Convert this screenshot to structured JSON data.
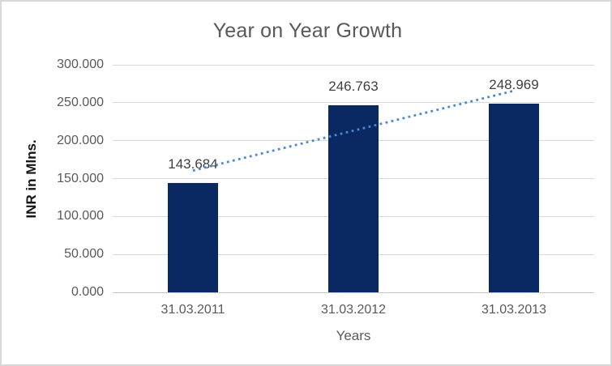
{
  "window": {
    "background": "#ffffff",
    "border_color": "#d8d8d8"
  },
  "chart_data": {
    "type": "bar",
    "title": "Year on Year Growth",
    "categories": [
      "31.03.2011",
      "31.03.2012",
      "31.03.2013"
    ],
    "values": [
      143.684,
      246.763,
      248.969
    ],
    "data_labels": [
      "143.684",
      "246.763",
      "248.969"
    ],
    "xlabel": "Years",
    "ylabel": "INR in Mlns.",
    "ylim": [
      0,
      300
    ],
    "ytick_step": 50,
    "ytick_labels": [
      "0.000",
      "50.000",
      "100.000",
      "150.000",
      "200.000",
      "250.000",
      "300.000"
    ],
    "grid": true,
    "legend": "none",
    "trendline": {
      "type": "linear",
      "style": "dotted",
      "color": "#4e86d0"
    },
    "colors": {
      "bar": "#0a2963",
      "gridline": "#d9d9d9",
      "axis_line": "#c6c4c4",
      "title_text": "#595959",
      "tick_text": "#595959",
      "data_label_text": "#404040",
      "x_axis_title_text": "#595959",
      "y_axis_title_text": "#141414"
    }
  }
}
